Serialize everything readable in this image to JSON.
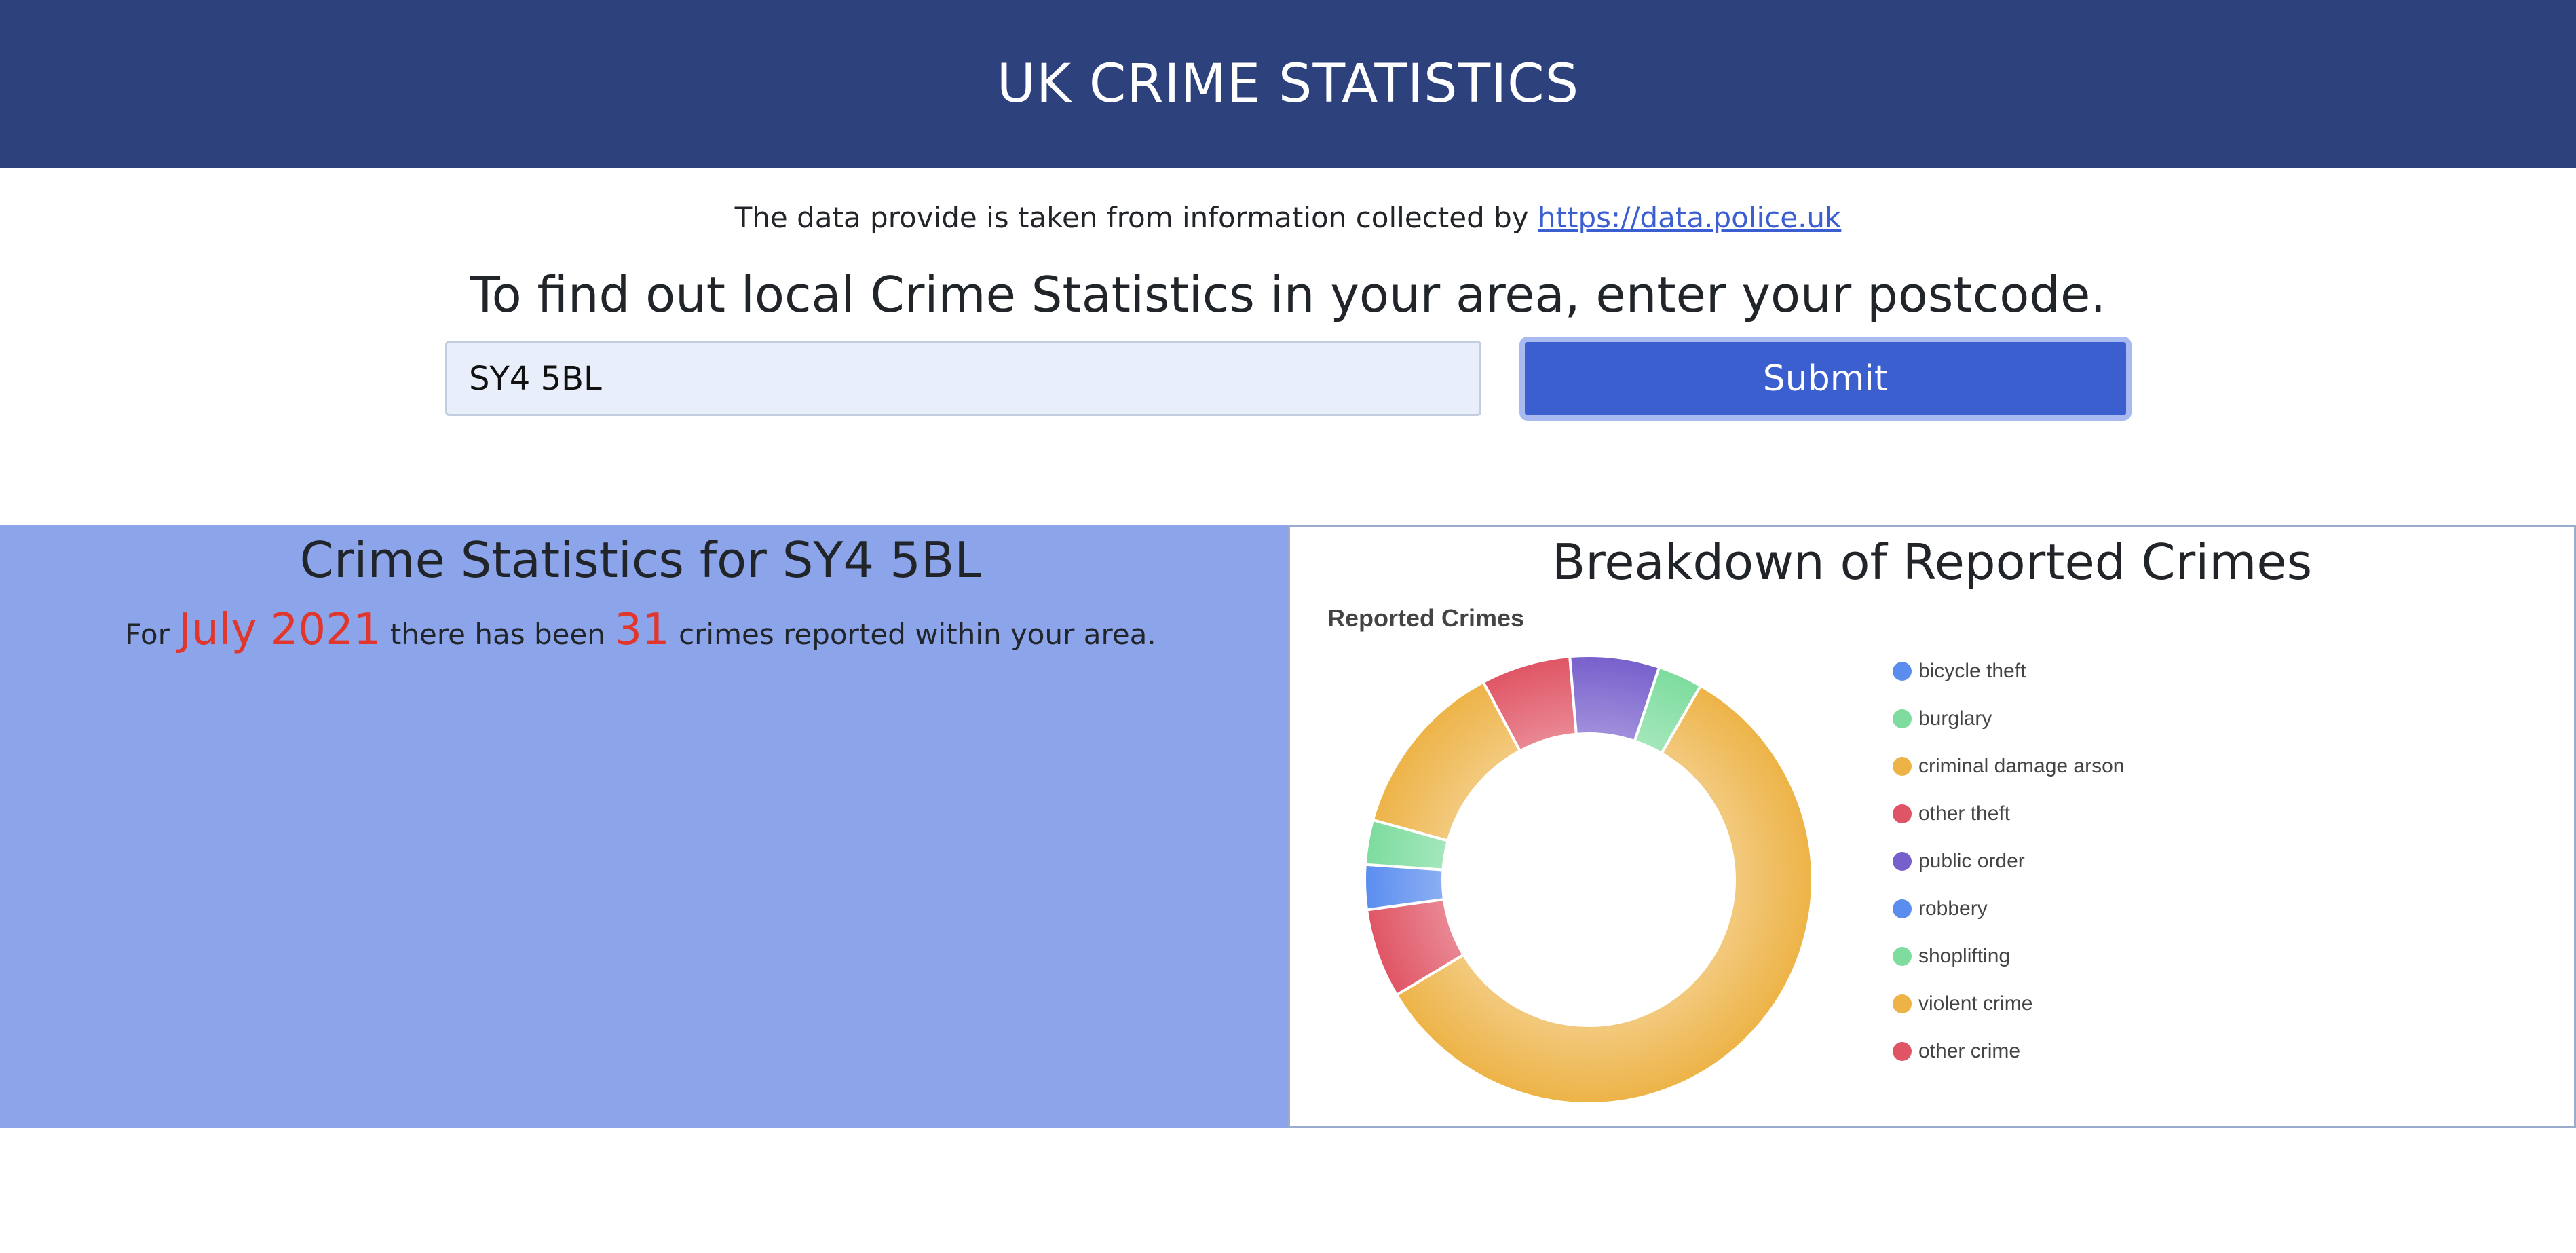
{
  "header": {
    "title": "UK CRIME STATISTICS"
  },
  "source": {
    "text": "The data provide is taken from information collected by ",
    "link_text": "https://data.police.uk"
  },
  "search": {
    "prompt": "To find out local Crime Statistics in your area, enter your postcode.",
    "value": "SY4 5BL",
    "submit_label": "Submit"
  },
  "stats": {
    "heading": "Crime Statistics for SY4 5BL",
    "prefix": "For",
    "month": "July 2021",
    "middle": "there has been",
    "count": "31",
    "suffix": "crimes reported within your area."
  },
  "breakdown": {
    "heading": "Breakdown of Reported Crimes"
  },
  "chart_data": {
    "type": "pie",
    "variant": "donut",
    "title": "Reported Crimes",
    "legend_position": "right",
    "categories": [
      "bicycle theft",
      "burglary",
      "criminal damage arson",
      "other theft",
      "public order",
      "robbery",
      "shoplifting",
      "violent crime",
      "other crime"
    ],
    "values": [
      0,
      1,
      4,
      2,
      2,
      1,
      1,
      18,
      2
    ],
    "colors": [
      "#5b8def",
      "#7ddc9e",
      "#edb347",
      "#e05565",
      "#7760cc",
      "#5b8def",
      "#7ddc9e",
      "#edb347",
      "#e05565"
    ],
    "start_angle_deg": 30,
    "direction": "clockwise",
    "slice_order": [
      7,
      8,
      5,
      6,
      2,
      3,
      4,
      0,
      1
    ]
  }
}
